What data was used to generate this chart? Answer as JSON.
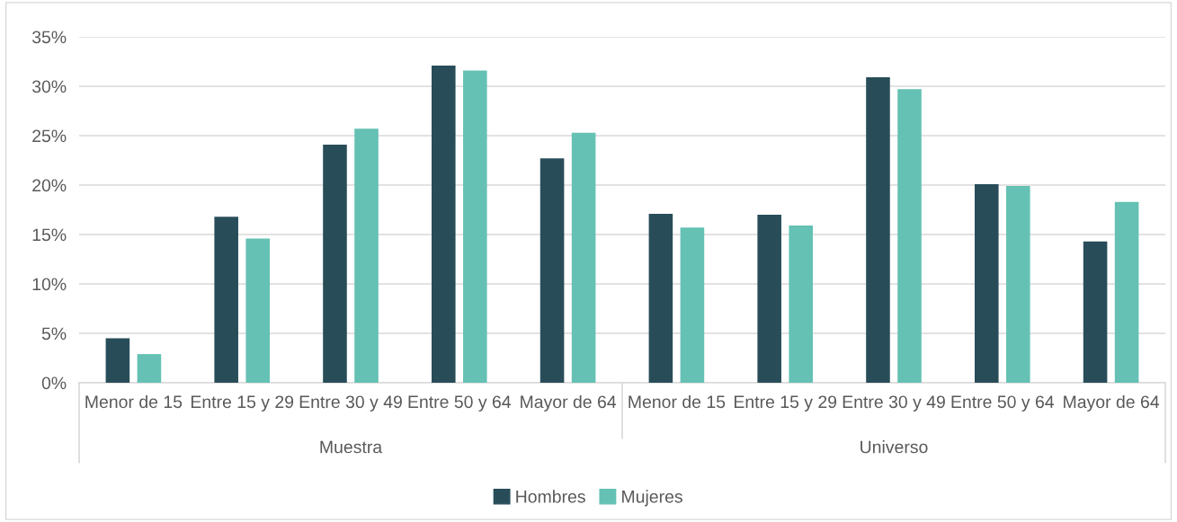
{
  "chart_data": {
    "type": "bar",
    "categories": [
      "Menor de 15",
      "Entre 15 y 29",
      "Entre 30 y 49",
      "Entre 50 y 64",
      "Mayor de 64",
      "Menor de 15",
      "Entre 15 y 29",
      "Entre 30 y 49",
      "Entre 50 y 64",
      "Mayor de 64"
    ],
    "series": [
      {
        "name": "Hombres",
        "color": "#284d59",
        "values": [
          4.5,
          16.8,
          24.1,
          32.1,
          22.7,
          17.1,
          17.0,
          30.9,
          20.1,
          14.3
        ]
      },
      {
        "name": "Mujeres",
        "color": "#64c1b4",
        "values": [
          2.9,
          14.6,
          25.7,
          31.6,
          25.3,
          15.7,
          15.9,
          29.7,
          19.9,
          18.3
        ]
      }
    ],
    "annotations": [
      "Muestra",
      "Universo"
    ],
    "ylim": [
      0,
      35
    ],
    "yticks": [
      {
        "value": 0,
        "label": "0%"
      },
      {
        "value": 5,
        "label": "5%"
      },
      {
        "value": 10,
        "label": "10%"
      },
      {
        "value": 15,
        "label": "15%"
      },
      {
        "value": 20,
        "label": "20%"
      },
      {
        "value": 25,
        "label": "25%"
      },
      {
        "value": 30,
        "label": "30%"
      },
      {
        "value": 35,
        "label": "35%"
      }
    ],
    "grid": "y",
    "legend": "bottom"
  }
}
